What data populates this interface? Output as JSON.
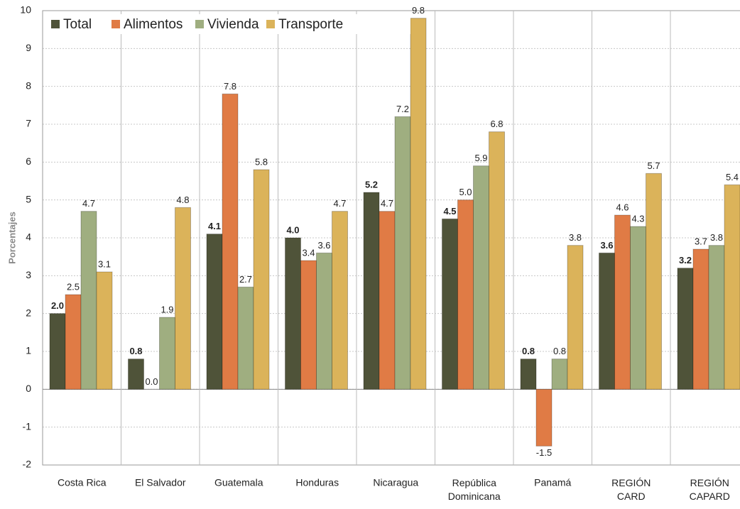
{
  "chart_data": {
    "type": "bar",
    "y_label": "Porcentajes",
    "categories": [
      "Costa Rica",
      "El Salvador",
      "Guatemala",
      "Honduras",
      "Nicaragua",
      "República\nDominicana",
      "Panamá",
      "REGIÓN\nCARD",
      "REGIÓN\nCAPARD"
    ],
    "series": [
      {
        "name": "Total",
        "color": "#4f5339",
        "values": [
          2.0,
          0.8,
          4.1,
          4.0,
          5.2,
          4.5,
          0.8,
          3.6,
          3.2
        ],
        "value_labels": [
          "2.0",
          "0.8",
          "4.1",
          "4.0",
          "5.2",
          "4.5",
          "0.8",
          "3.6",
          "3.2"
        ]
      },
      {
        "name": "Alimentos",
        "color": "#e07b45",
        "values": [
          2.5,
          0.0,
          7.8,
          3.4,
          4.7,
          5.0,
          -1.5,
          4.6,
          3.7
        ],
        "value_labels": [
          "2.5",
          "0.0",
          "7.8",
          "3.4",
          "4.7",
          "5.0",
          "-1.5",
          "4.6",
          "3.7"
        ]
      },
      {
        "name": "Vivienda",
        "color": "#9fae80",
        "values": [
          4.7,
          1.9,
          2.7,
          3.6,
          7.2,
          5.9,
          0.8,
          4.3,
          3.8
        ],
        "value_labels": [
          "4.7",
          "1.9",
          "2.7",
          "3.6",
          "7.2",
          "5.9",
          "0.8",
          "4.3",
          "3.8"
        ]
      },
      {
        "name": "Transporte",
        "color": "#dbb35a",
        "values": [
          3.1,
          4.8,
          5.8,
          4.7,
          9.8,
          6.8,
          3.8,
          5.7,
          5.4
        ],
        "value_labels": [
          "3.1",
          "4.8",
          "5.8",
          "4.7",
          "9.8",
          "6.8",
          "3.8",
          "5.7",
          "5.4"
        ]
      }
    ],
    "ylim": [
      -2,
      10
    ],
    "yticks": [
      -2,
      -1,
      0,
      1,
      2,
      3,
      4,
      5,
      6,
      7,
      8,
      9,
      10
    ],
    "grid": true
  }
}
